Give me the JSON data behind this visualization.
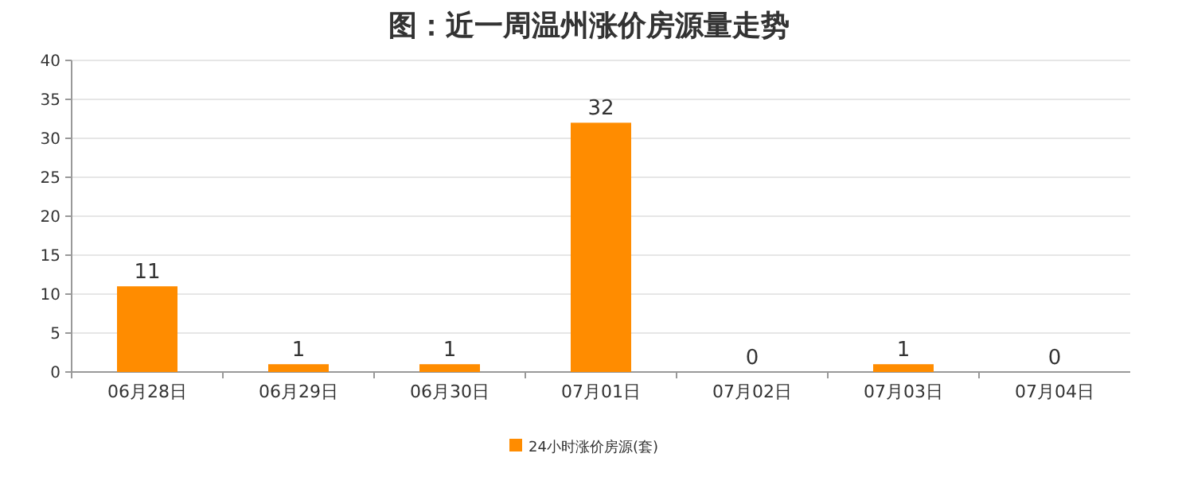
{
  "chart_data": {
    "type": "bar",
    "title": "图：近一周温州涨价房源量走势",
    "categories": [
      "06月28日",
      "06月29日",
      "06月30日",
      "07月01日",
      "07月02日",
      "07月03日",
      "07月04日"
    ],
    "series": [
      {
        "name": "24小时涨价房源(套)",
        "color": "#ff8c00",
        "values": [
          11,
          1,
          1,
          32,
          0,
          1,
          0
        ]
      }
    ],
    "ylim": [
      0,
      40
    ],
    "yticks": [
      0,
      5,
      10,
      15,
      20,
      25,
      30,
      35,
      40
    ],
    "grid": "y",
    "legend": "bottom",
    "data_labels": true
  }
}
